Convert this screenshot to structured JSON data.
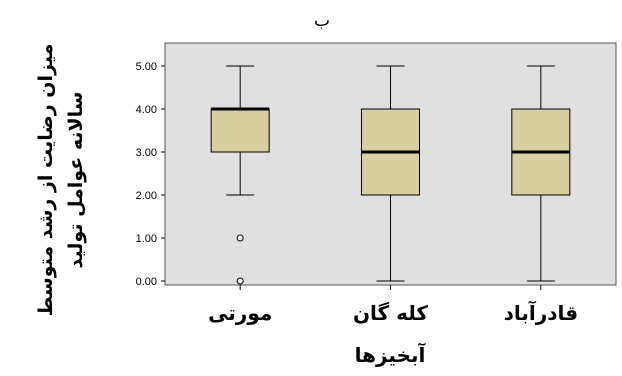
{
  "chart_data": {
    "type": "boxplot",
    "title": "ب",
    "xlabel": "آبخیزها",
    "ylabel_lines": [
      "میزان رضایت از رشد متوسط",
      "سالانه عوامل تولید"
    ],
    "ylim": [
      0,
      5
    ],
    "yticks": [
      "0.00",
      "1.00",
      "2.00",
      "3.00",
      "4.00",
      "5.00"
    ],
    "grid": false,
    "categories": [
      "مورتی",
      "کله گان",
      "قادرآباد"
    ],
    "boxes": [
      {
        "category": "مورتی",
        "min": 2.0,
        "q1": 3.0,
        "median": 4.0,
        "q3": 4.0,
        "max": 5.0,
        "outliers": [
          1.0,
          0.0
        ]
      },
      {
        "category": "کله گان",
        "min": 0.0,
        "q1": 2.0,
        "median": 3.0,
        "q3": 4.0,
        "max": 5.0,
        "outliers": []
      },
      {
        "category": "قادرآباد",
        "min": 0.0,
        "q1": 2.0,
        "median": 3.0,
        "q3": 4.0,
        "max": 5.0,
        "outliers": []
      }
    ],
    "colors": {
      "plot_background": "#e0e0e0",
      "box_fill": "#d8cf9e",
      "line": "#000000"
    }
  }
}
